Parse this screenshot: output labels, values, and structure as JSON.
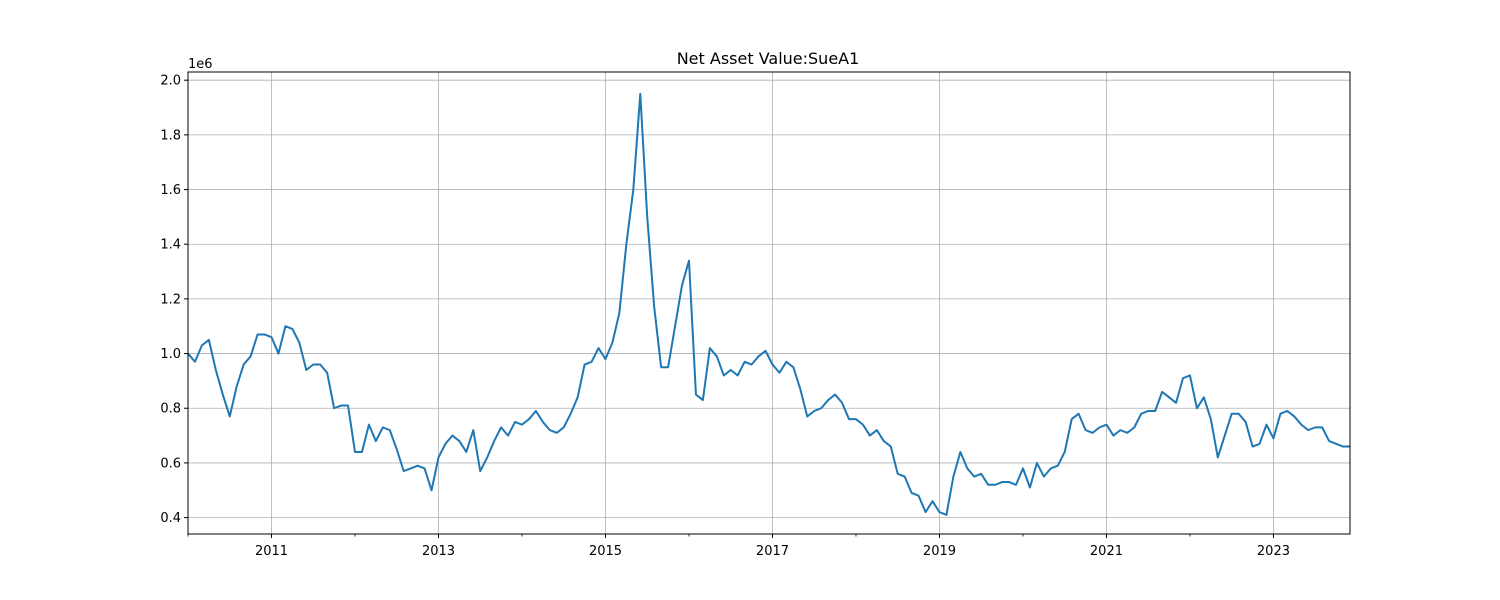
{
  "chart_data": {
    "type": "line",
    "title": "Net Asset Value:SueA1",
    "xlabel": "",
    "ylabel": "",
    "y_offset_label": "1e6",
    "x_tick_labels": [
      "2011",
      "2013",
      "2015",
      "2017",
      "2019",
      "2021",
      "2023"
    ],
    "y_tick_labels": [
      "0.4",
      "0.6",
      "0.8",
      "1.0",
      "1.2",
      "1.4",
      "1.6",
      "1.8",
      "2.0"
    ],
    "xlim": [
      "2010-01",
      "2023-12"
    ],
    "ylim": [
      0.34,
      2.03
    ],
    "grid": true,
    "line_color": "#1f77b4",
    "series": [
      {
        "x": [
          "2010-01",
          "2010-02",
          "2010-03",
          "2010-04",
          "2010-05",
          "2010-06",
          "2010-07",
          "2010-08",
          "2010-09",
          "2010-10",
          "2010-11",
          "2010-12",
          "2011-01",
          "2011-02",
          "2011-03",
          "2011-04",
          "2011-05",
          "2011-06",
          "2011-07",
          "2011-08",
          "2011-09",
          "2011-10",
          "2011-11",
          "2011-12",
          "2012-01",
          "2012-02",
          "2012-03",
          "2012-04",
          "2012-05",
          "2012-06",
          "2012-07",
          "2012-08",
          "2012-09",
          "2012-10",
          "2012-11",
          "2012-12",
          "2013-01",
          "2013-02",
          "2013-03",
          "2013-04",
          "2013-05",
          "2013-06",
          "2013-07",
          "2013-08",
          "2013-09",
          "2013-10",
          "2013-11",
          "2013-12",
          "2014-01",
          "2014-02",
          "2014-03",
          "2014-04",
          "2014-05",
          "2014-06",
          "2014-07",
          "2014-08",
          "2014-09",
          "2014-10",
          "2014-11",
          "2014-12",
          "2015-01",
          "2015-02",
          "2015-03",
          "2015-04",
          "2015-05",
          "2015-06",
          "2015-07",
          "2015-08",
          "2015-09",
          "2015-10",
          "2015-11",
          "2015-12",
          "2016-01",
          "2016-02",
          "2016-03",
          "2016-04",
          "2016-05",
          "2016-06",
          "2016-07",
          "2016-08",
          "2016-09",
          "2016-10",
          "2016-11",
          "2016-12",
          "2017-01",
          "2017-02",
          "2017-03",
          "2017-04",
          "2017-05",
          "2017-06",
          "2017-07",
          "2017-08",
          "2017-09",
          "2017-10",
          "2017-11",
          "2017-12",
          "2018-01",
          "2018-02",
          "2018-03",
          "2018-04",
          "2018-05",
          "2018-06",
          "2018-07",
          "2018-08",
          "2018-09",
          "2018-10",
          "2018-11",
          "2018-12",
          "2019-01",
          "2019-02",
          "2019-03",
          "2019-04",
          "2019-05",
          "2019-06",
          "2019-07",
          "2019-08",
          "2019-09",
          "2019-10",
          "2019-11",
          "2019-12",
          "2020-01",
          "2020-02",
          "2020-03",
          "2020-04",
          "2020-05",
          "2020-06",
          "2020-07",
          "2020-08",
          "2020-09",
          "2020-10",
          "2020-11",
          "2020-12",
          "2021-01",
          "2021-02",
          "2021-03",
          "2021-04",
          "2021-05",
          "2021-06",
          "2021-07",
          "2021-08",
          "2021-09",
          "2021-10",
          "2021-11",
          "2021-12",
          "2022-01",
          "2022-02",
          "2022-03",
          "2022-04",
          "2022-05",
          "2022-06",
          "2022-07",
          "2022-08",
          "2022-09",
          "2022-10",
          "2022-11",
          "2022-12",
          "2023-01",
          "2023-02",
          "2023-03",
          "2023-04",
          "2023-05",
          "2023-06",
          "2023-07",
          "2023-08",
          "2023-09",
          "2023-10",
          "2023-11",
          "2023-12"
        ],
        "values": [
          1.0,
          0.97,
          1.03,
          1.05,
          0.94,
          0.85,
          0.77,
          0.88,
          0.96,
          0.99,
          1.07,
          1.07,
          1.06,
          1.0,
          1.1,
          1.09,
          1.04,
          0.94,
          0.96,
          0.96,
          0.93,
          0.8,
          0.81,
          0.81,
          0.64,
          0.64,
          0.74,
          0.68,
          0.73,
          0.72,
          0.65,
          0.57,
          0.58,
          0.59,
          0.58,
          0.5,
          0.62,
          0.67,
          0.7,
          0.68,
          0.64,
          0.72,
          0.57,
          0.62,
          0.68,
          0.73,
          0.7,
          0.75,
          0.74,
          0.76,
          0.79,
          0.75,
          0.72,
          0.71,
          0.73,
          0.78,
          0.84,
          0.96,
          0.97,
          1.02,
          0.98,
          1.04,
          1.15,
          1.4,
          1.6,
          1.95,
          1.5,
          1.17,
          0.95,
          0.95,
          1.1,
          1.25,
          1.34,
          0.85,
          0.83,
          1.02,
          0.99,
          0.92,
          0.94,
          0.92,
          0.97,
          0.96,
          0.99,
          1.01,
          0.96,
          0.93,
          0.97,
          0.95,
          0.87,
          0.77,
          0.79,
          0.8,
          0.83,
          0.85,
          0.82,
          0.76,
          0.76,
          0.74,
          0.7,
          0.72,
          0.68,
          0.66,
          0.56,
          0.55,
          0.49,
          0.48,
          0.42,
          0.46,
          0.42,
          0.41,
          0.55,
          0.64,
          0.58,
          0.55,
          0.56,
          0.52,
          0.52,
          0.53,
          0.53,
          0.52,
          0.58,
          0.51,
          0.6,
          0.55,
          0.58,
          0.59,
          0.64,
          0.76,
          0.78,
          0.72,
          0.71,
          0.73,
          0.74,
          0.7,
          0.72,
          0.71,
          0.73,
          0.78,
          0.79,
          0.79,
          0.86,
          0.84,
          0.82,
          0.91,
          0.92,
          0.8,
          0.84,
          0.76,
          0.62,
          0.7,
          0.78,
          0.78,
          0.75,
          0.66,
          0.67,
          0.74,
          0.69,
          0.78,
          0.79,
          0.77,
          0.74,
          0.72,
          0.73,
          0.73,
          0.68,
          0.67,
          0.66,
          0.66
        ]
      }
    ]
  }
}
